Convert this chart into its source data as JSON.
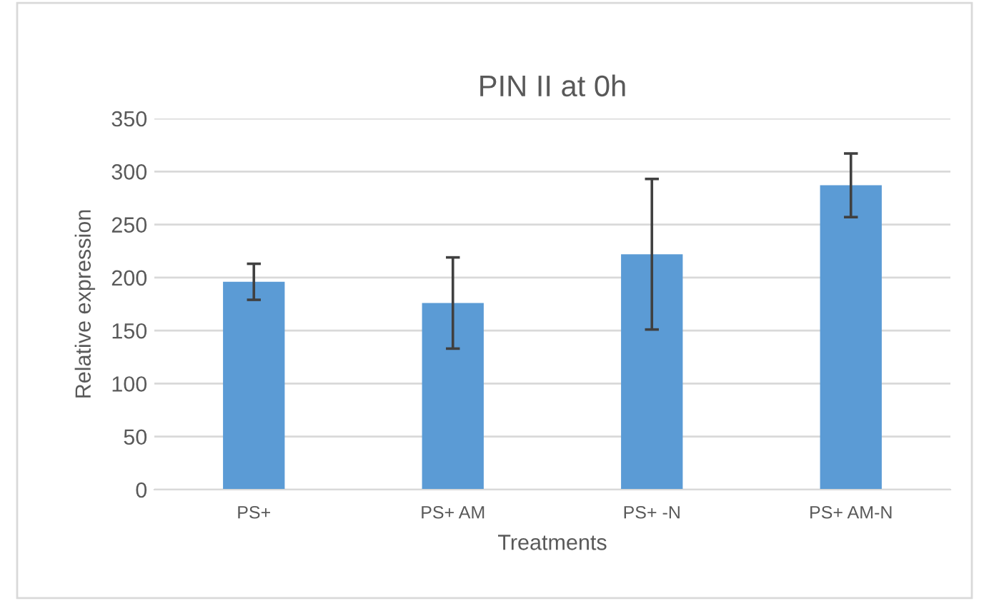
{
  "chart_data": {
    "type": "bar",
    "title": "PIN II at 0h",
    "xlabel": "Treatments",
    "ylabel": "Relative expression",
    "categories": [
      "PS+",
      "PS+ AM",
      "PS+ -N",
      "PS+ AM-N"
    ],
    "values": [
      196,
      176,
      222,
      287
    ],
    "errors": [
      17,
      43,
      71,
      30
    ],
    "color": "#5b9bd5",
    "ylim": [
      0,
      350
    ],
    "yticks": [
      0,
      50,
      100,
      150,
      200,
      250,
      300,
      350
    ],
    "grid": "y"
  }
}
